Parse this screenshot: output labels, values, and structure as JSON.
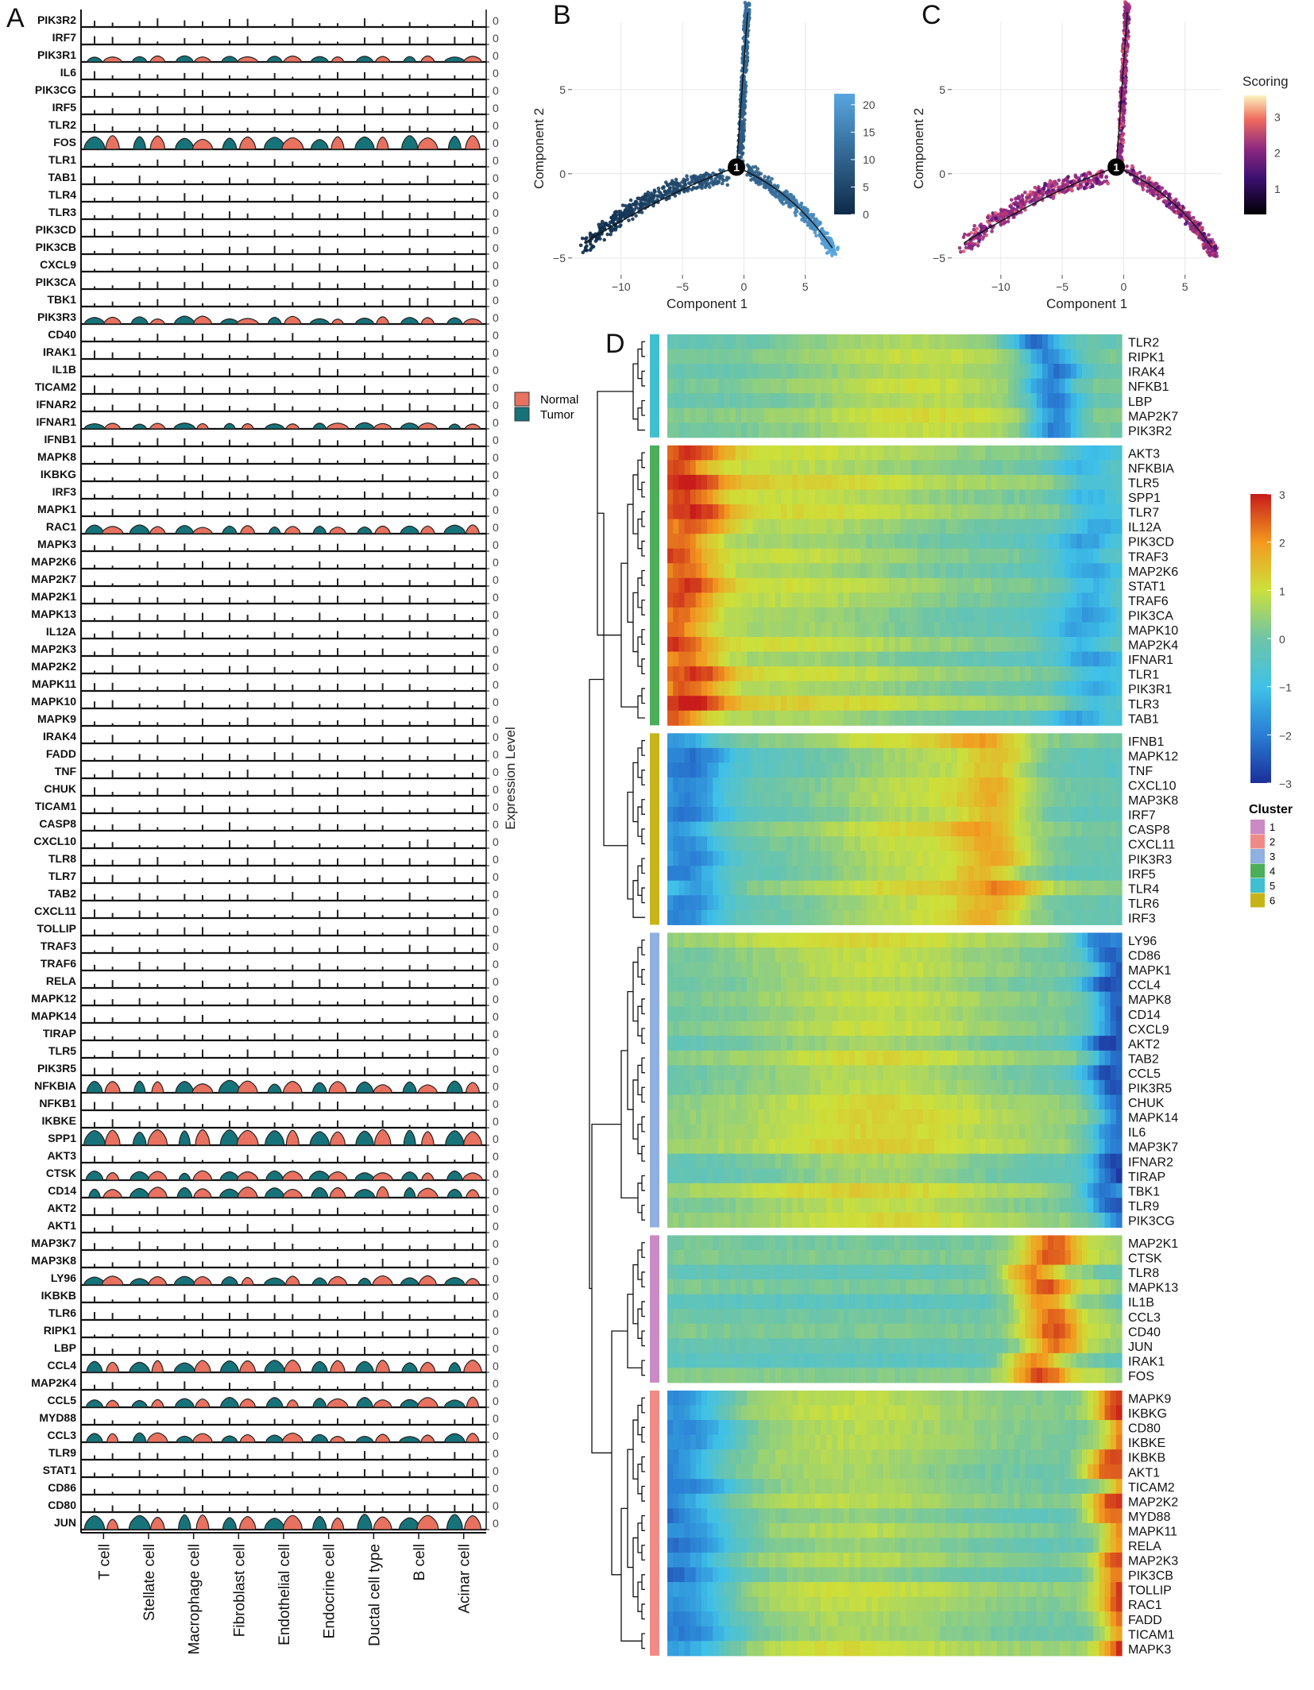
{
  "panels": {
    "a": "A",
    "b": "B",
    "c": "C",
    "d": "D"
  },
  "panel_a": {
    "genes": [
      "PIK3R2",
      "IRF7",
      "PIK3R1",
      "IL6",
      "PIK3CG",
      "IRF5",
      "TLR2",
      "FOS",
      "TLR1",
      "TAB1",
      "TLR4",
      "TLR3",
      "PIK3CD",
      "PIK3CB",
      "CXCL9",
      "PIK3CA",
      "TBK1",
      "PIK3R3",
      "CD40",
      "IRAK1",
      "IL1B",
      "TICAM2",
      "IFNAR2",
      "IFNAR1",
      "IFNB1",
      "MAPK8",
      "IKBKG",
      "IRF3",
      "MAPK1",
      "RAC1",
      "MAPK3",
      "MAP2K6",
      "MAP2K7",
      "MAP2K1",
      "MAPK13",
      "IL12A",
      "MAP2K3",
      "MAP2K2",
      "MAPK11",
      "MAPK10",
      "MAPK9",
      "IRAK4",
      "FADD",
      "TNF",
      "CHUK",
      "TICAM1",
      "CASP8",
      "CXCL10",
      "TLR8",
      "TLR7",
      "TAB2",
      "CXCL11",
      "TOLLIP",
      "TRAF3",
      "TRAF6",
      "RELA",
      "MAPK12",
      "MAPK14",
      "TIRAP",
      "TLR5",
      "PIK3R5",
      "NFKBIA",
      "NFKB1",
      "IKBKE",
      "SPP1",
      "AKT3",
      "CTSK",
      "CD14",
      "AKT2",
      "AKT1",
      "MAP3K7",
      "MAP3K8",
      "LY96",
      "IKBKB",
      "TLR6",
      "RIPK1",
      "LBP",
      "CCL4",
      "MAP2K4",
      "CCL5",
      "MYD88",
      "CCL3",
      "TLR9",
      "STAT1",
      "CD86",
      "CD80",
      "JUN"
    ],
    "cell_types": [
      "T cell",
      "Stellate cell",
      "Macrophage cell",
      "Fibroblast cell",
      "Endothelial cell",
      "Endocrine cell",
      "Ductal cell type",
      "B cell",
      "Acinar cell"
    ],
    "legend": [
      {
        "label": "Normal",
        "color": "#e8715f"
      },
      {
        "label": "Tumor",
        "color": "#16737a"
      }
    ],
    "ylabel": "Expression Level",
    "tick_zero": "0"
  },
  "panel_b": {
    "xlabel": "Component 1",
    "ylabel": "Component 2",
    "xticks": [
      "−10",
      "−5",
      "0",
      "5"
    ],
    "yticks": [
      "5",
      "0",
      "−5"
    ],
    "node": "1",
    "colorbar_ticks": [
      "20",
      "15",
      "10",
      "5",
      "0"
    ],
    "colors": {
      "low": "#0e2a47",
      "high": "#58a6e0"
    }
  },
  "panel_c": {
    "xlabel": "Component 1",
    "ylabel": "Component 2",
    "xticks": [
      "−10",
      "−5",
      "0",
      "5"
    ],
    "yticks": [
      "5",
      "0",
      "−5"
    ],
    "node": "1",
    "legend_title": "Scoring",
    "colorbar_ticks": [
      "3",
      "2",
      "1"
    ],
    "colors": {
      "low": "#1b0c3a",
      "mid": "#a2377a",
      "high": "#fbe8b0"
    }
  },
  "panel_d": {
    "clusters": [
      {
        "id": "5",
        "color": "#40bfcf",
        "genes": [
          "TLR2",
          "RIPK1",
          "IRAK4",
          "NFKB1",
          "LBP",
          "MAP2K7",
          "PIK3R2"
        ]
      },
      {
        "id": "4",
        "color": "#4cae5b",
        "genes": [
          "AKT3",
          "NFKBIA",
          "TLR5",
          "SPP1",
          "TLR7",
          "IL12A",
          "PIK3CD",
          "TRAF3",
          "MAP2K6",
          "STAT1",
          "TRAF6",
          "PIK3CA",
          "MAPK10",
          "MAP2K4",
          "IFNAR1",
          "TLR1",
          "PIK3R1",
          "TLR3",
          "TAB1"
        ]
      },
      {
        "id": "6",
        "color": "#c7b419",
        "genes": [
          "IFNB1",
          "MAPK12",
          "TNF",
          "CXCL10",
          "MAP3K8",
          "IRF7",
          "CASP8",
          "CXCL11",
          "PIK3R3",
          "IRF5",
          "TLR4",
          "TLR6",
          "IRF3"
        ]
      },
      {
        "id": "3",
        "color": "#8fb0e0",
        "genes": [
          "LY96",
          "CD86",
          "MAPK1",
          "CCL4",
          "MAPK8",
          "CD14",
          "CXCL9",
          "AKT2",
          "TAB2",
          "CCL5",
          "PIK3R5",
          "CHUK",
          "MAPK14",
          "IL6",
          "MAP3K7",
          "IFNAR2",
          "TIRAP",
          "TBK1",
          "TLR9",
          "PIK3CG"
        ]
      },
      {
        "id": "1",
        "color": "#c98ac6",
        "genes": [
          "MAP2K1",
          "CTSK",
          "TLR8",
          "MAPK13",
          "IL1B",
          "CCL3",
          "CD40",
          "JUN",
          "IRAK1",
          "FOS"
        ]
      },
      {
        "id": "2",
        "color": "#ef8b86",
        "genes": [
          "MAPK9",
          "IKBKG",
          "CD80",
          "IKBKE",
          "IKBKB",
          "AKT1",
          "TICAM2",
          "MAP2K2",
          "MYD88",
          "MAPK11",
          "RELA",
          "MAP2K3",
          "PIK3CB",
          "TOLLIP",
          "RAC1",
          "FADD",
          "TICAM1",
          "MAPK3"
        ]
      }
    ],
    "colorbar_ticks": [
      "3",
      "2",
      "1",
      "0",
      "−1",
      "−2",
      "−3"
    ],
    "cluster_title": "Cluster",
    "cluster_legend": [
      {
        "label": "1",
        "color": "#c98ac6"
      },
      {
        "label": "2",
        "color": "#ef8b86"
      },
      {
        "label": "3",
        "color": "#8fb0e0"
      },
      {
        "label": "4",
        "color": "#4cae5b"
      },
      {
        "label": "5",
        "color": "#40bfcf"
      },
      {
        "label": "6",
        "color": "#c7b419"
      }
    ]
  }
}
